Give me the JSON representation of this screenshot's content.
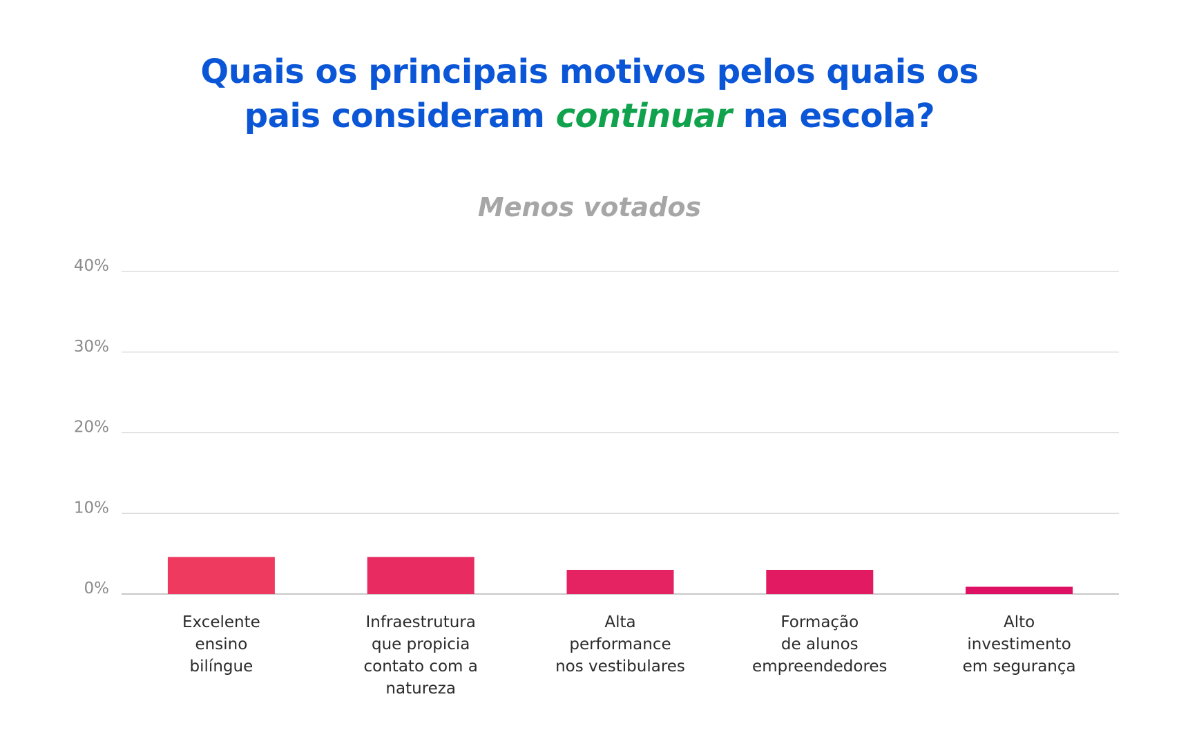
{
  "header": {
    "title_part1": "Quais os principais motivos pelos quais os",
    "title_part2": "pais consideram ",
    "title_highlight": "continuar",
    "title_part3": " na escola?",
    "subtitle": "Menos votados"
  },
  "colors": {
    "title": "#0a56d6",
    "highlight": "#10a24c",
    "subtitle": "#a6a6a6",
    "gridline": "#d6d6d6",
    "bars": [
      "#ee3a5f",
      "#e82c62",
      "#e52363",
      "#e11a62",
      "#de1063"
    ]
  },
  "chart_data": {
    "type": "bar",
    "title": "Menos votados",
    "xlabel": "",
    "ylabel": "",
    "ylim": [
      0,
      40
    ],
    "yticks": [
      0,
      10,
      20,
      30,
      40
    ],
    "ytick_labels": [
      "0%",
      "10%",
      "20%",
      "30%",
      "40%"
    ],
    "grid": true,
    "legend": "none",
    "categories": [
      [
        "Excelente",
        "ensino",
        "bilíngue"
      ],
      [
        "Infraestrutura",
        "que propicia",
        "contato com a",
        "natureza"
      ],
      [
        "Alta",
        "performance",
        "nos vestibulares"
      ],
      [
        "Formação",
        "de alunos",
        "empreendedores"
      ],
      [
        "Alto",
        "investimento",
        "em segurança"
      ]
    ],
    "values": [
      4.6,
      4.6,
      3.0,
      3.0,
      0.9
    ]
  }
}
